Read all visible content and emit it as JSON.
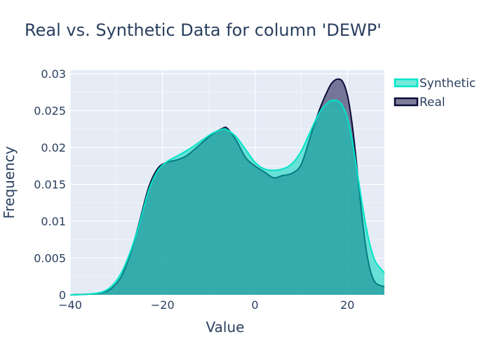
{
  "chart_data": {
    "type": "area",
    "title": "Real vs. Synthetic Data for column 'DEWP'",
    "xlabel": "Value",
    "ylabel": "Frequency",
    "xlim": [
      -40,
      28
    ],
    "ylim": [
      0,
      0.0305
    ],
    "x_ticks": [
      -40,
      -20,
      0,
      20
    ],
    "x_tick_labels": [
      "−40",
      "−20",
      "0",
      "20"
    ],
    "y_ticks": [
      0,
      0.005,
      0.01,
      0.015,
      0.02,
      0.025,
      0.03
    ],
    "y_tick_labels": [
      "0",
      "0.005",
      "0.01",
      "0.015",
      "0.02",
      "0.025",
      "0.03"
    ],
    "grid": true,
    "legend_position": "top-right",
    "series": [
      {
        "name": "Synthetic",
        "color": "#00e5c8",
        "fill": "rgba(0,216,190,0.55)",
        "x": [
          -40,
          -36,
          -33,
          -31,
          -29,
          -27,
          -25,
          -23,
          -21,
          -19,
          -17,
          -15,
          -13,
          -11,
          -9,
          -7,
          -6,
          -4,
          -2,
          0,
          2,
          4,
          6,
          8,
          10,
          12,
          14,
          16,
          17,
          18,
          19,
          20,
          21,
          22,
          23,
          24,
          25,
          26,
          27,
          28
        ],
        "y": [
          0.0,
          0.0001,
          0.0004,
          0.0012,
          0.0029,
          0.0058,
          0.0097,
          0.0142,
          0.0169,
          0.0181,
          0.0188,
          0.0195,
          0.0203,
          0.0212,
          0.022,
          0.0225,
          0.0224,
          0.0214,
          0.0197,
          0.018,
          0.0171,
          0.0169,
          0.0171,
          0.0178,
          0.0195,
          0.0222,
          0.0248,
          0.0262,
          0.0264,
          0.0263,
          0.0256,
          0.024,
          0.0211,
          0.0172,
          0.0131,
          0.0094,
          0.0065,
          0.0046,
          0.0037,
          0.003
        ]
      },
      {
        "name": "Real",
        "color": "#0d0d3a",
        "fill": "rgba(40,40,90,0.6)",
        "x": [
          -40,
          -36,
          -33,
          -31,
          -29,
          -27,
          -25,
          -23,
          -21,
          -19,
          -17,
          -15,
          -13,
          -11,
          -9,
          -7,
          -6,
          -4,
          -2,
          0,
          2,
          4,
          6,
          8,
          10,
          12,
          14,
          16,
          17,
          18,
          19,
          20,
          21,
          22,
          23,
          24,
          25,
          26,
          27,
          28
        ],
        "y": [
          0.0,
          0.0001,
          0.0003,
          0.0009,
          0.0024,
          0.0055,
          0.0099,
          0.0146,
          0.0172,
          0.018,
          0.0183,
          0.0188,
          0.0198,
          0.0209,
          0.0219,
          0.0226,
          0.0226,
          0.0209,
          0.0186,
          0.0175,
          0.0167,
          0.0159,
          0.0162,
          0.0165,
          0.0177,
          0.0215,
          0.0252,
          0.0281,
          0.029,
          0.0293,
          0.0289,
          0.0271,
          0.0233,
          0.0177,
          0.0115,
          0.0064,
          0.0032,
          0.0017,
          0.0013,
          0.0011
        ]
      }
    ]
  }
}
